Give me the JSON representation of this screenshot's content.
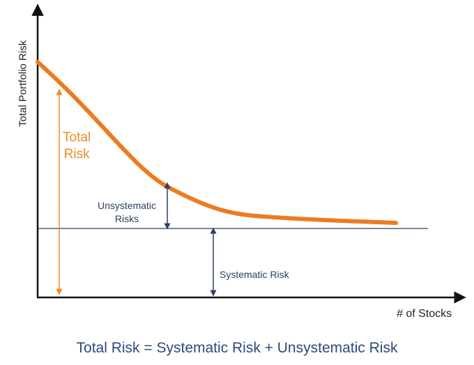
{
  "axes": {
    "y_label": "Total Portfolio Risk",
    "x_label": "# of Stocks"
  },
  "labels": {
    "total_risk_line1": "Total",
    "total_risk_line2": "Risk",
    "unsystematic_line1": "Unsystematic",
    "unsystematic_line2": "Risks",
    "systematic": "Systematic Risk"
  },
  "formula": "Total Risk = Systematic Risk + Unsystematic Risk",
  "colors": {
    "curve": "#ee7b1f",
    "total_risk": "#ee8a25",
    "navy": "#2c3e64",
    "axis": "#111111"
  }
}
